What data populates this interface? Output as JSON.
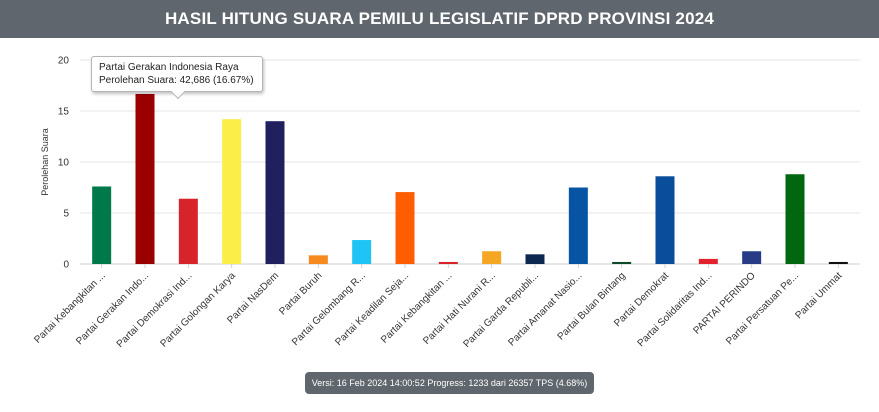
{
  "header": {
    "title": "HASIL HITUNG SUARA PEMILU LEGISLATIF DPRD PROVINSI 2024"
  },
  "tooltip": {
    "party": "Partai Gerakan Indonesia Raya",
    "detail": "Perolehan Suara: 42,686 (16.67%)"
  },
  "footer": {
    "version_text": "Versi: 16 Feb 2024 14:00:52 Progress: 1233 dari 26357 TPS (4.68%)"
  },
  "chart_data": {
    "type": "bar",
    "title": "",
    "xlabel": "",
    "ylabel": "Perolehan Suara",
    "ylim": [
      0,
      20
    ],
    "yticks": [
      0,
      5,
      10,
      15,
      20
    ],
    "grid": true,
    "categories": [
      "Partai Kebangkitan ...",
      "Partai Gerakan Indo...",
      "Partai Demokrasi Ind...",
      "Partai Golongan Karya",
      "Partai NasDem",
      "Partai Buruh",
      "Partai Gelombang R...",
      "Partai Keadilan Seja...",
      "Partai Kebangkitan ...",
      "Partai Hati Nurani R...",
      "Partai Garda Republi...",
      "Partai Amanat Nasio...",
      "Partai Bulan Bintang",
      "Partai Demokrat",
      "Partai Solidaritas Ind...",
      "PARTAI PERINDO",
      "Partai Persatuan Pe...",
      "Partai Ummat"
    ],
    "values": [
      7.6,
      16.67,
      6.4,
      14.2,
      14.0,
      0.85,
      2.35,
      7.05,
      0.2,
      1.25,
      0.95,
      7.5,
      0.2,
      8.6,
      0.5,
      1.25,
      8.8,
      0.2
    ],
    "colors": [
      "#00794a",
      "#9b0000",
      "#d7242b",
      "#fcee49",
      "#21205f",
      "#f6891f",
      "#1fc4f4",
      "#fe5d01",
      "#d7242b",
      "#f5a623",
      "#0c2850",
      "#0754a5",
      "#0d4a2a",
      "#0a4e9b",
      "#e4222d",
      "#273b86",
      "#006710",
      "#111111"
    ]
  }
}
